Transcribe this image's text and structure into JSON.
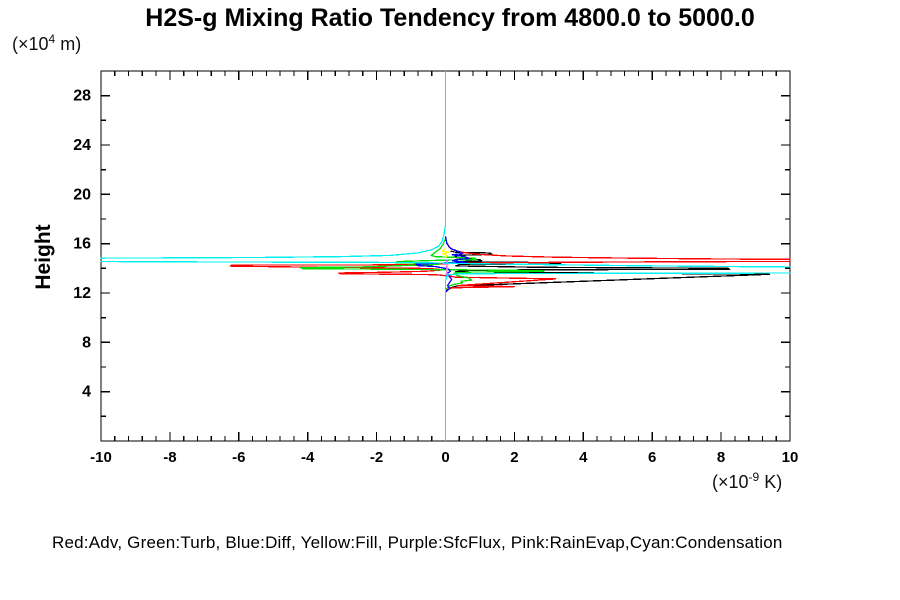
{
  "title": "H2S-g Mixing Ratio Tendency from 4800.0 to 5000.0",
  "y_axis_label": "Height",
  "y_axis_unit": {
    "prefix": "(×10",
    "exponent": "4",
    "suffix": " m)"
  },
  "x_axis_unit": {
    "prefix": "(×10",
    "exponent": "-9",
    "suffix": " K)"
  },
  "legend_line": "Red:Adv, Green:Turb, Blue:Diff, Yellow:Fill, Purple:SfcFlux, Pink:RainEvap,Cyan:Condensation",
  "chart_data": {
    "type": "line",
    "title": "H2S-g Mixing Ratio Tendency from 4800.0 to 5000.0",
    "xlabel": "(×10^-9 K)",
    "ylabel": "Height (×10^4 m)",
    "xlim": [
      -10,
      10
    ],
    "ylim": [
      0,
      30
    ],
    "x_major_ticks": [
      -10,
      -8,
      -6,
      -4,
      -2,
      0,
      2,
      4,
      6,
      8,
      10
    ],
    "x_tick_labels": [
      "-10",
      "-8",
      "-6",
      "-4",
      "-2",
      "0",
      "2",
      "4",
      "6",
      "8",
      "10"
    ],
    "x_minor_step": 0.4,
    "y_major_ticks": [
      4,
      8,
      12,
      16,
      20,
      24,
      28
    ],
    "y_tick_labels": [
      "4",
      "8",
      "12",
      "16",
      "20",
      "24",
      "28"
    ],
    "y_minor_step": 2,
    "grid": false,
    "axis_color": "#000000",
    "background": "#ffffff",
    "legend_position": "text line below plot",
    "legend_entries": [
      {
        "color_name": "Red",
        "label": "Adv",
        "color": "#ff0000"
      },
      {
        "color_name": "Green",
        "label": "Turb",
        "color": "#00dd00"
      },
      {
        "color_name": "Blue",
        "label": "Diff",
        "color": "#0000ff"
      },
      {
        "color_name": "Yellow",
        "label": "Fill",
        "color": "#ffff00"
      },
      {
        "color_name": "Purple",
        "label": "SfcFlux",
        "color": "#bb66ff"
      },
      {
        "color_name": "Pink",
        "label": "RainEvap",
        "color": "#ff88ee"
      },
      {
        "color_name": "Cyan",
        "label": "Condensation",
        "color": "#00f0f0"
      }
    ],
    "series": [
      {
        "id": "black-unlabeled",
        "legend_label": null,
        "color": "#000000",
        "points": [
          [
            0.15,
            15.4
          ],
          [
            0.3,
            15.3
          ],
          [
            1.3,
            15.24
          ],
          [
            1.35,
            15.14
          ],
          [
            0.4,
            15.06
          ],
          [
            0.25,
            14.9
          ],
          [
            0.5,
            14.8
          ],
          [
            1.0,
            14.7
          ],
          [
            1.05,
            14.6
          ],
          [
            0.3,
            14.54
          ],
          [
            3.3,
            14.46
          ],
          [
            3.35,
            14.36
          ],
          [
            0.4,
            14.3
          ],
          [
            0.3,
            14.2
          ],
          [
            2.7,
            14.08
          ],
          [
            8.2,
            14.0
          ],
          [
            8.25,
            13.92
          ],
          [
            2.5,
            13.88
          ],
          [
            0.5,
            13.84
          ],
          [
            0.3,
            13.72
          ],
          [
            9.4,
            13.52
          ],
          [
            0.33,
            12.57
          ],
          [
            0.15,
            12.42
          ],
          [
            0.05,
            12.25
          ],
          [
            0,
            12.1
          ]
        ]
      },
      {
        "id": "adv",
        "legend_label": "Adv",
        "color": "#ff0000",
        "points": [
          [
            0.06,
            16.0
          ],
          [
            0.1,
            15.75
          ],
          [
            0.22,
            15.5
          ],
          [
            0.45,
            15.32
          ],
          [
            0.9,
            15.15
          ],
          [
            1.8,
            15.0
          ],
          [
            3.2,
            14.9
          ],
          [
            5.5,
            14.82
          ],
          [
            8.0,
            14.76
          ],
          [
            10.7,
            14.72
          ],
          [
            10.7,
            14.56
          ],
          [
            7.0,
            14.54
          ],
          [
            4.0,
            14.5
          ],
          [
            1.5,
            14.46
          ],
          [
            0.4,
            14.42
          ],
          [
            -0.15,
            14.36
          ],
          [
            -0.9,
            14.3
          ],
          [
            -2.5,
            14.27
          ],
          [
            -6.2,
            14.26
          ],
          [
            -6.25,
            14.18
          ],
          [
            -4.5,
            14.12
          ],
          [
            -2.5,
            14.06
          ],
          [
            -0.8,
            14.0
          ],
          [
            -0.2,
            13.94
          ],
          [
            -0.15,
            13.85
          ],
          [
            -0.6,
            13.76
          ],
          [
            -1.8,
            13.68
          ],
          [
            -3.1,
            13.62
          ],
          [
            -3.05,
            13.56
          ],
          [
            -1.2,
            13.52
          ],
          [
            -0.3,
            13.48
          ],
          [
            0.1,
            13.38
          ],
          [
            0.3,
            13.28
          ],
          [
            3.2,
            13.14
          ],
          [
            0.35,
            12.6
          ],
          [
            2.0,
            12.52
          ],
          [
            0.2,
            12.42
          ],
          [
            0.1,
            12.32
          ],
          [
            0,
            12.2
          ]
        ]
      },
      {
        "id": "turb",
        "legend_label": "Turb",
        "color": "#00dd00",
        "points": [
          [
            0,
            16.4
          ],
          [
            -0.06,
            16.0
          ],
          [
            -0.15,
            15.6
          ],
          [
            -0.3,
            15.3
          ],
          [
            -0.42,
            15.05
          ],
          [
            -0.3,
            14.95
          ],
          [
            0.3,
            14.88
          ],
          [
            0.85,
            14.82
          ],
          [
            0.9,
            14.72
          ],
          [
            -0.3,
            14.64
          ],
          [
            -1.4,
            14.55
          ],
          [
            -1.45,
            14.45
          ],
          [
            -0.4,
            14.4
          ],
          [
            -0.2,
            14.32
          ],
          [
            -2.4,
            14.12
          ],
          [
            -4.2,
            14.06
          ],
          [
            -4.15,
            13.98
          ],
          [
            -1.8,
            13.93
          ],
          [
            0.3,
            13.88
          ],
          [
            2.8,
            13.82
          ],
          [
            2.85,
            13.74
          ],
          [
            0.8,
            13.7
          ],
          [
            0.25,
            13.62
          ],
          [
            0.35,
            13.4
          ],
          [
            0.7,
            13.2
          ],
          [
            0.75,
            13.05
          ],
          [
            0.45,
            12.95
          ],
          [
            0.5,
            12.82
          ],
          [
            0.25,
            12.7
          ],
          [
            0.1,
            12.55
          ],
          [
            0.05,
            12.4
          ],
          [
            0,
            12.3
          ]
        ]
      },
      {
        "id": "diff",
        "legend_label": "Diff",
        "color": "#0000ff",
        "points": [
          [
            0,
            16.6
          ],
          [
            0.04,
            16.0
          ],
          [
            0.15,
            15.6
          ],
          [
            0.4,
            15.35
          ],
          [
            0.5,
            15.2
          ],
          [
            0.2,
            15.1
          ],
          [
            0.55,
            14.95
          ],
          [
            0.7,
            14.8
          ],
          [
            0.3,
            14.7
          ],
          [
            0.2,
            14.6
          ],
          [
            0.6,
            14.5
          ],
          [
            -0.3,
            14.42
          ],
          [
            -0.85,
            14.32
          ],
          [
            -0.8,
            14.22
          ],
          [
            -0.3,
            14.15
          ],
          [
            -0.12,
            14.05
          ],
          [
            0.1,
            13.92
          ],
          [
            0.14,
            13.75
          ],
          [
            0.05,
            13.6
          ],
          [
            0.1,
            13.4
          ],
          [
            0.18,
            13.1
          ],
          [
            0.12,
            12.85
          ],
          [
            0.06,
            12.6
          ],
          [
            0.12,
            12.4
          ],
          [
            0.05,
            12.2
          ],
          [
            0,
            12.05
          ]
        ]
      },
      {
        "id": "fill",
        "legend_label": "Fill",
        "color": "#ffff00",
        "points": [
          [
            0,
            15.6
          ],
          [
            -0.1,
            15.4
          ],
          [
            0.1,
            15.3
          ],
          [
            -0.08,
            15.18
          ],
          [
            0.05,
            15.05
          ],
          [
            0,
            14.9
          ]
        ]
      },
      {
        "id": "sfcflux",
        "legend_label": "SfcFlux",
        "color": "#bb66ff",
        "points": [
          [
            0.02,
            14.7
          ],
          [
            0.05,
            14.4
          ],
          [
            0.02,
            14.1
          ],
          [
            0.05,
            13.8
          ],
          [
            0.02,
            13.5
          ],
          [
            0.04,
            13.3
          ]
        ]
      },
      {
        "id": "rainevap",
        "legend_label": "RainEvap",
        "color": "#ff88ee",
        "points": [
          [
            0.06,
            14.6
          ],
          [
            0.03,
            14.3
          ],
          [
            0.07,
            14.0
          ],
          [
            0.03,
            13.7
          ],
          [
            0.06,
            13.45
          ]
        ]
      },
      {
        "id": "condensation",
        "legend_label": "Condensation",
        "color": "#00f0f0",
        "points": [
          [
            0,
            30
          ],
          [
            0,
            17.5
          ],
          [
            -0.04,
            16.8
          ],
          [
            -0.1,
            16.2
          ],
          [
            -0.2,
            15.8
          ],
          [
            -0.4,
            15.5
          ],
          [
            -0.8,
            15.25
          ],
          [
            -1.6,
            15.05
          ],
          [
            -3.0,
            14.95
          ],
          [
            -5.5,
            14.88
          ],
          [
            -8.2,
            14.85
          ],
          [
            -10.7,
            14.82
          ],
          [
            -10.7,
            14.56
          ],
          [
            -8.3,
            14.53
          ],
          [
            -4.0,
            14.5
          ],
          [
            -1.0,
            14.47
          ],
          [
            -0.2,
            14.43
          ],
          [
            0.3,
            14.4
          ],
          [
            1.5,
            14.35
          ],
          [
            3.5,
            14.28
          ],
          [
            6.0,
            14.2
          ],
          [
            8.5,
            14.14
          ],
          [
            10.7,
            14.1
          ],
          [
            10.7,
            13.62
          ],
          [
            5.8,
            13.6
          ],
          [
            2.0,
            13.58
          ],
          [
            0.4,
            13.56
          ],
          [
            0.05,
            13.45
          ],
          [
            0,
            13.0
          ],
          [
            0,
            0
          ]
        ]
      }
    ]
  }
}
